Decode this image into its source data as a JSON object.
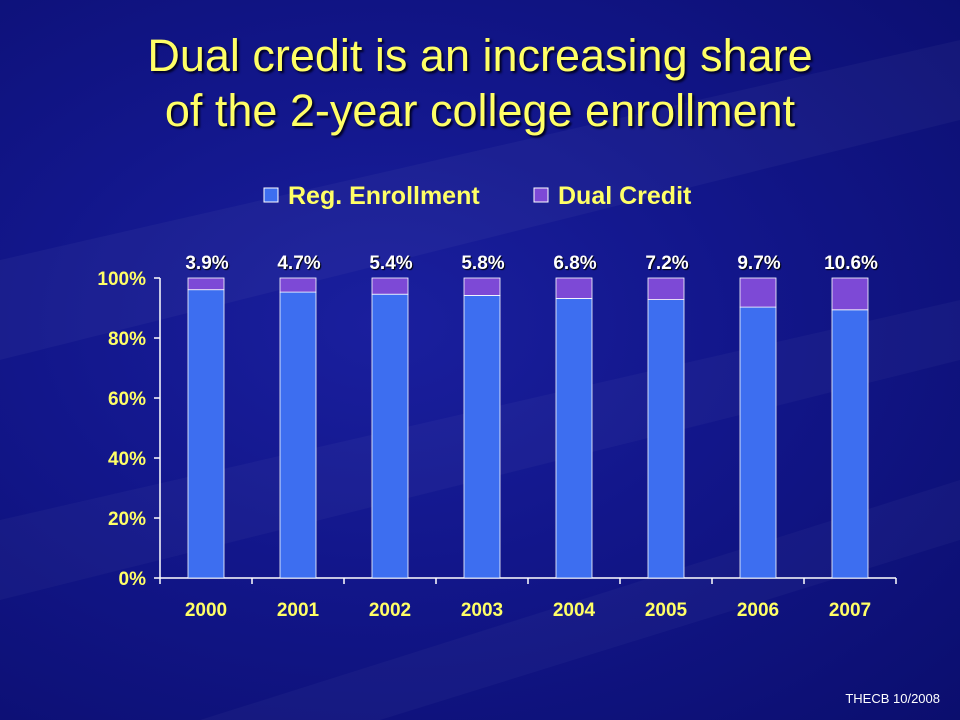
{
  "slide": {
    "title_line1": "Dual credit is an increasing share",
    "title_line2": "of the 2-year college enrollment",
    "footer": "THECB 10/2008"
  },
  "colors": {
    "background": "#12168a",
    "title": "#ffff66",
    "reg_enrollment": "#3d6ef0",
    "dual_credit": "#7d49d6",
    "axis_text": "#ffff66",
    "data_labels": "#ffffff"
  },
  "chart_data": {
    "type": "bar",
    "stacked": true,
    "categories": [
      "2000",
      "2001",
      "2002",
      "2003",
      "2004",
      "2005",
      "2006",
      "2007"
    ],
    "series": [
      {
        "name": "Reg. Enrollment",
        "values": [
          96.1,
          95.3,
          94.6,
          94.2,
          93.2,
          92.8,
          90.3,
          89.4
        ]
      },
      {
        "name": "Dual Credit",
        "values": [
          3.9,
          4.7,
          5.4,
          5.8,
          6.8,
          7.2,
          9.7,
          10.6
        ]
      }
    ],
    "data_labels": [
      "3.9%",
      "4.7%",
      "5.4%",
      "5.8%",
      "6.8%",
      "7.2%",
      "9.7%",
      "10.6%"
    ],
    "yticks": [
      "0%",
      "20%",
      "40%",
      "60%",
      "80%",
      "100%"
    ],
    "ylim": [
      0,
      100
    ],
    "legend_position": "top",
    "grid": false
  }
}
